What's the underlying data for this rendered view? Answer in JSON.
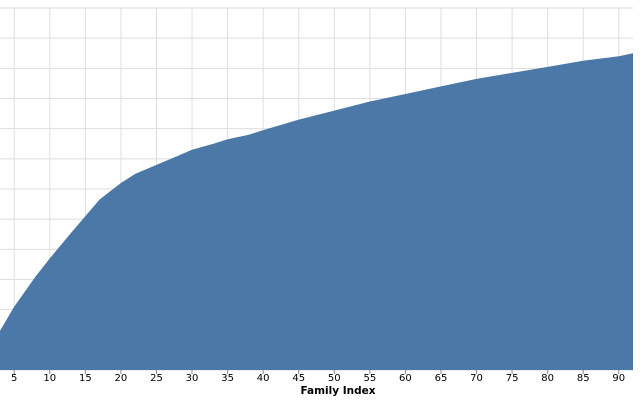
{
  "chart_data": {
    "type": "area",
    "xlabel": "Family Index",
    "ylabel": "",
    "title": "",
    "grid": true,
    "fill_color": "#4c78a8",
    "grid_color": "#dedede",
    "xlim": [
      3,
      92
    ],
    "ylim": [
      0,
      1.2
    ],
    "x_ticks": [
      "5",
      "10",
      "15",
      "20",
      "25",
      "30",
      "35",
      "40",
      "45",
      "50",
      "55",
      "60",
      "65",
      "70",
      "75",
      "80",
      "85",
      "90"
    ],
    "x": [
      3,
      5,
      8,
      10,
      13,
      15,
      17,
      20,
      22,
      25,
      28,
      30,
      33,
      35,
      38,
      40,
      45,
      50,
      55,
      60,
      65,
      70,
      75,
      80,
      85,
      90,
      92
    ],
    "values": [
      0.13,
      0.21,
      0.31,
      0.37,
      0.455,
      0.51,
      0.565,
      0.62,
      0.65,
      0.68,
      0.71,
      0.73,
      0.75,
      0.765,
      0.78,
      0.795,
      0.83,
      0.86,
      0.89,
      0.915,
      0.94,
      0.965,
      0.985,
      1.005,
      1.025,
      1.04,
      1.05
    ]
  }
}
